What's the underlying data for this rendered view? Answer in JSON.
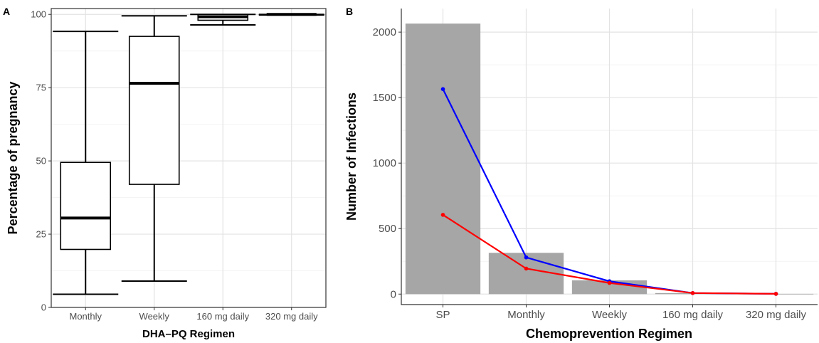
{
  "chart_data": [
    {
      "panel": "A",
      "type": "boxplot",
      "xlabel": "DHA–PQ Regimen",
      "ylabel": "Percentage of pregnancy",
      "ylim": [
        0,
        102
      ],
      "y_ticks": [
        0,
        25,
        50,
        75,
        100
      ],
      "grid": true,
      "categories": [
        "Monthly",
        "Weekly",
        "160 mg daily",
        "320 mg daily"
      ],
      "boxes": [
        {
          "min": 4.5,
          "q1": 19.8,
          "median": 30.5,
          "q3": 49.5,
          "max": 94.2
        },
        {
          "min": 9.0,
          "q1": 42.0,
          "median": 76.5,
          "q3": 92.5,
          "max": 99.5
        },
        {
          "min": 96.4,
          "q1": 98.0,
          "median": 99.2,
          "q3": 100.0,
          "max": 100.0
        },
        {
          "min": 99.8,
          "q1": 99.9,
          "median": 100.0,
          "q3": 100.0,
          "max": 100.0
        }
      ]
    },
    {
      "panel": "B",
      "type": "bar",
      "xlabel": "Chemoprevention Regimen",
      "ylabel": "Number of Infections",
      "ylim": [
        -80,
        2180
      ],
      "y_ticks": [
        0,
        500,
        1000,
        1500,
        2000
      ],
      "grid": true,
      "categories": [
        "SP",
        "Monthly",
        "Weekly",
        "160 mg daily",
        "320 mg daily"
      ],
      "values": [
        2065,
        315,
        105,
        8,
        2
      ],
      "bar_color": "#a6a6a6",
      "lines": [
        {
          "color": "#0000ff",
          "values": [
            1565,
            280,
            98,
            8,
            2
          ]
        },
        {
          "color": "#ff0000",
          "values": [
            605,
            195,
            85,
            8,
            2
          ]
        }
      ]
    }
  ]
}
